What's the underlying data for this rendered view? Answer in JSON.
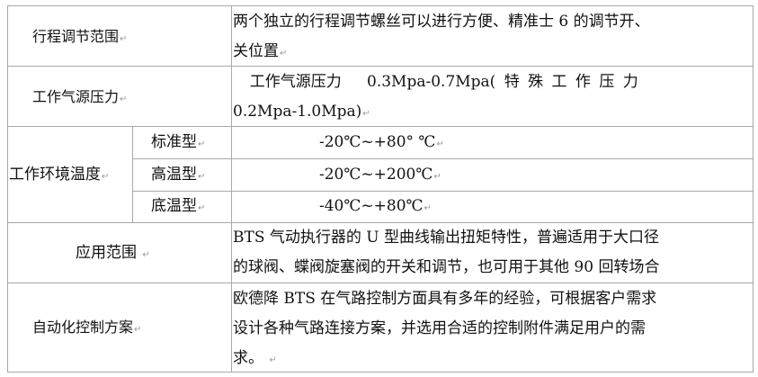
{
  "table": {
    "rows": [
      {
        "label": "行程调节范围",
        "lines": [
          "两个独立的行程调节螺丝可以进行方便、精准士 6 的调节开、",
          "关位置"
        ]
      },
      {
        "label": "工作气源压力",
        "lines": [
          "  工作气源压力   0.3Mpa-0.7Mpa( 特 殊 工 作 压 力",
          "0.2Mpa-1.0Mpa)"
        ]
      },
      {
        "label": "工作环境温度",
        "sub": [
          {
            "label": "标准型",
            "value": "-20℃~+80° ℃"
          },
          {
            "label": "高温型",
            "value": "-20℃~+200℃"
          },
          {
            "label": "底温型",
            "value": "-40℃~+80℃"
          }
        ]
      },
      {
        "label": "应用范围",
        "lines": [
          "BTS 气动执行器的 U 型曲线输出扭矩特性，普遍适用于大口径",
          "的球阀、蝶阀旋塞阀的开关和调节，也可用于其他 90 回转场合"
        ]
      },
      {
        "label": "自动化控制方案",
        "lines": [
          "欧德降 BTS 在气路控制方面具有多年的经验，可根据客户需求",
          "设计各种气路连接方案，并选用合适的控制附件满足用户的需",
          "求。"
        ]
      }
    ]
  },
  "paragraph_mark": "↵",
  "border_color": "#a8a8a8"
}
